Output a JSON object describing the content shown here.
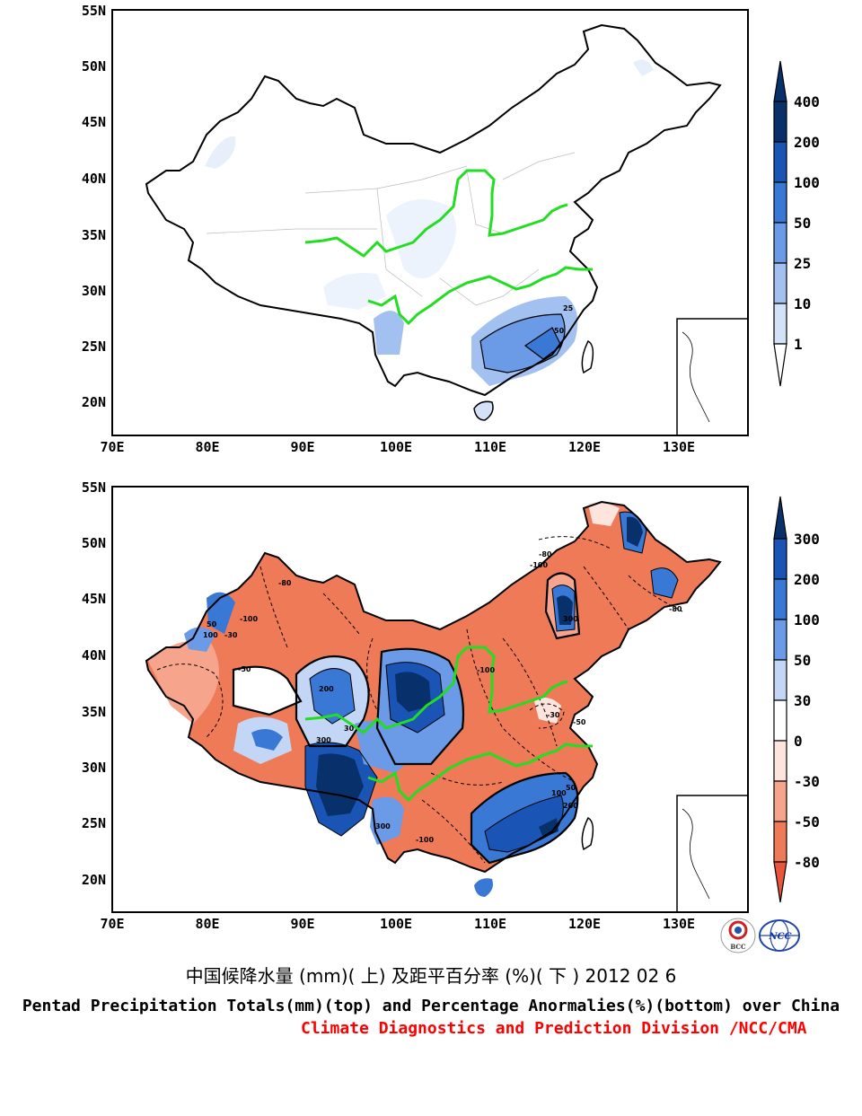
{
  "map_top": {
    "lat_labels": [
      "55N",
      "50N",
      "45N",
      "40N",
      "35N",
      "30N",
      "25N",
      "20N"
    ],
    "lon_labels": [
      "70E",
      "80E",
      "90E",
      "100E",
      "110E",
      "120E",
      "130E"
    ],
    "contour_labels": [
      "25",
      "50"
    ],
    "colorbar": {
      "labels": [
        "400",
        "200",
        "100",
        "50",
        "25",
        "10",
        "1"
      ],
      "colors": [
        "#08306b",
        "#1a55b5",
        "#3a78d6",
        "#6b9ae6",
        "#a3c1f0",
        "#d4e2f7",
        "#ffffff"
      ]
    }
  },
  "map_bottom": {
    "lat_labels": [
      "55N",
      "50N",
      "45N",
      "40N",
      "35N",
      "30N",
      "25N",
      "20N"
    ],
    "lon_labels": [
      "70E",
      "80E",
      "90E",
      "100E",
      "110E",
      "120E",
      "130E"
    ],
    "contour_labels": [
      "-100",
      "-80",
      "-50",
      "-30",
      "100",
      "50",
      "300",
      "200",
      "30",
      "-100",
      "-80",
      "-100",
      "300",
      "-80",
      "-50",
      "-100",
      "50",
      "100",
      "200",
      "300",
      "-30"
    ],
    "colorbar": {
      "labels": [
        "300",
        "200",
        "100",
        "50",
        "30",
        "0",
        "-30",
        "-50",
        "-80"
      ],
      "colors": [
        "#08306b",
        "#1a55b5",
        "#3a78d6",
        "#6b9ae6",
        "#c3d6f5",
        "#ffffff",
        "#fde4dc",
        "#f6a58c",
        "#ee7a58",
        "#e8553a"
      ]
    }
  },
  "logos": {
    "left": "BCC",
    "right": "NCC"
  },
  "caption_cn": "中国候降水量 (mm)( 上) 及距平百分率 (%)( 下 ) 2012 02 6",
  "caption_en": "Pentad Precipitation Totals(mm)(top) and Percentage Anormalies(%)(bottom) over China",
  "caption_division": "Climate Diagnostics and Prediction Division /NCC/CMA",
  "colors": {
    "division_text": "#ff0000",
    "river": "#22dd22"
  }
}
